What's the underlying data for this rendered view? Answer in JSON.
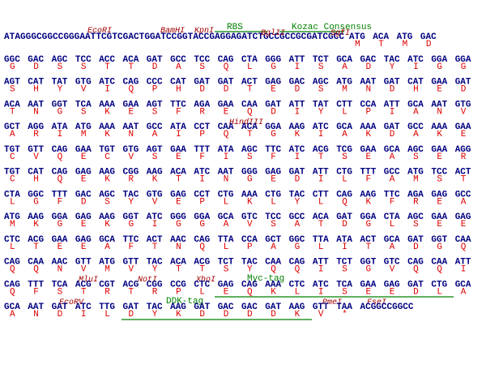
{
  "leader": "ATAGGGCGGCCGGGAATTCGTCGACTGGATCCGGTACCGAGGAGATCTGCCGCCGCGATCGCC",
  "annotations": [
    "EcoRI",
    "BamHI",
    "KpnI",
    "RBS",
    "BglII",
    "Kozac Consensus",
    "SgfI",
    "HindIII",
    "MluI",
    "NotI",
    "XhoI",
    "Myc-tag",
    "EcoRV",
    "DDK-tag",
    "PmeI",
    "FseI"
  ],
  "trailer": "ACGGCCGGCC",
  "rows": [
    {
      "codons": [
        "ATG",
        "ACA",
        "ATG",
        "GAC"
      ],
      "aa": [
        "M",
        "T",
        "M",
        "D"
      ]
    },
    {
      "codons": [
        "GGC",
        "GAC",
        "AGC",
        "TCC",
        "ACC",
        "ACA",
        "GAT",
        "GCC",
        "TCC",
        "CAG",
        "CTA",
        "GGG",
        "ATT",
        "TCT",
        "GCA",
        "GAC",
        "TAC",
        "ATC",
        "GGA",
        "GGA"
      ],
      "aa": [
        "G",
        "D",
        "S",
        "S",
        "T",
        "T",
        "D",
        "A",
        "S",
        "Q",
        "L",
        "G",
        "I",
        "S",
        "A",
        "D",
        "Y",
        "I",
        "G",
        "G"
      ]
    },
    {
      "codons": [
        "AGT",
        "CAT",
        "TAT",
        "GTG",
        "ATC",
        "CAG",
        "CCC",
        "CAT",
        "GAT",
        "GAT",
        "ACT",
        "GAG",
        "GAC",
        "AGC",
        "ATG",
        "AAT",
        "GAT",
        "CAT",
        "GAA",
        "GAT"
      ],
      "aa": [
        "S",
        "H",
        "Y",
        "V",
        "I",
        "Q",
        "P",
        "H",
        "D",
        "D",
        "T",
        "E",
        "D",
        "S",
        "M",
        "N",
        "D",
        "H",
        "E",
        "D"
      ]
    },
    {
      "codons": [
        "ACA",
        "AAT",
        "GGT",
        "TCA",
        "AAA",
        "GAA",
        "AGT",
        "TTC",
        "AGA",
        "GAA",
        "CAA",
        "GAT",
        "ATT",
        "TAT",
        "CTT",
        "CCA",
        "ATT",
        "GCA",
        "AAT",
        "GTG"
      ],
      "aa": [
        "T",
        "N",
        "G",
        "S",
        "K",
        "E",
        "S",
        "F",
        "R",
        "E",
        "Q",
        "D",
        "I",
        "Y",
        "L",
        "P",
        "I",
        "A",
        "N",
        "V"
      ]
    },
    {
      "codons": [
        "GCT",
        "AGG",
        "ATA",
        "ATG",
        "AAA",
        "AAT",
        "GCC",
        "ATA",
        "CCT",
        "CAA",
        "ACA",
        "GGA",
        "AAG",
        "ATC",
        "GCA",
        "AAA",
        "GAT",
        "GCC",
        "AAA",
        "GAA"
      ],
      "aa": [
        "A",
        "R",
        "I",
        "M",
        "K",
        "N",
        "A",
        "I",
        "P",
        "Q",
        "T",
        "G",
        "K",
        "I",
        "A",
        "K",
        "D",
        "A",
        "K",
        "E"
      ]
    },
    {
      "codons": [
        "TGT",
        "GTT",
        "CAG",
        "GAA",
        "TGT",
        "GTG",
        "AGT",
        "GAA",
        "TTT",
        "ATA",
        "AGC",
        "TTC",
        "ATC",
        "ACG",
        "TCG",
        "GAA",
        "GCA",
        "AGC",
        "GAA",
        "AGG"
      ],
      "aa": [
        "C",
        "V",
        "Q",
        "E",
        "C",
        "V",
        "S",
        "E",
        "F",
        "I",
        "S",
        "F",
        "I",
        "T",
        "S",
        "E",
        "A",
        "S",
        "E",
        "R"
      ]
    },
    {
      "codons": [
        "TGT",
        "CAT",
        "CAG",
        "GAG",
        "AAG",
        "CGG",
        "AAG",
        "ACA",
        "ATC",
        "AAT",
        "GGG",
        "GAG",
        "GAT",
        "ATT",
        "CTG",
        "TTT",
        "GCC",
        "ATG",
        "TCC",
        "ACT"
      ],
      "aa": [
        "C",
        "H",
        "Q",
        "E",
        "K",
        "R",
        "K",
        "T",
        "I",
        "N",
        "G",
        "E",
        "D",
        "I",
        "L",
        "F",
        "A",
        "M",
        "S",
        "T"
      ]
    },
    {
      "codons": [
        "CTA",
        "GGC",
        "TTT",
        "GAC",
        "AGC",
        "TAC",
        "GTG",
        "GAG",
        "CCT",
        "CTG",
        "AAA",
        "CTG",
        "TAC",
        "CTT",
        "CAG",
        "AAG",
        "TTC",
        "AGA",
        "GAG",
        "GCC"
      ],
      "aa": [
        "L",
        "G",
        "F",
        "D",
        "S",
        "Y",
        "V",
        "E",
        "P",
        "L",
        "K",
        "L",
        "Y",
        "L",
        "Q",
        "K",
        "F",
        "R",
        "E",
        "A"
      ]
    },
    {
      "codons": [
        "ATG",
        "AAG",
        "GGA",
        "GAG",
        "AAG",
        "GGT",
        "ATC",
        "GGG",
        "GGA",
        "GCA",
        "GTC",
        "TCC",
        "GCC",
        "ACA",
        "GAT",
        "GGA",
        "CTA",
        "AGC",
        "GAA",
        "GAG"
      ],
      "aa": [
        "M",
        "K",
        "G",
        "E",
        "K",
        "G",
        "I",
        "G",
        "G",
        "A",
        "V",
        "S",
        "A",
        "T",
        "D",
        "G",
        "L",
        "S",
        "E",
        "E"
      ]
    },
    {
      "codons": [
        "CTC",
        "ACG",
        "GAA",
        "GAG",
        "GCA",
        "TTC",
        "ACT",
        "AAC",
        "CAG",
        "TTA",
        "CCA",
        "GCT",
        "GGC",
        "TTA",
        "ATA",
        "ACT",
        "GCA",
        "GAT",
        "GGT",
        "CAA"
      ],
      "aa": [
        "L",
        "T",
        "E",
        "E",
        "A",
        "F",
        "T",
        "N",
        "Q",
        "L",
        "P",
        "A",
        "G",
        "L",
        "I",
        "T",
        "A",
        "D",
        "G",
        "Q"
      ]
    },
    {
      "codons": [
        "CAG",
        "CAA",
        "AAC",
        "GTT",
        "ATG",
        "GTT",
        "TAC",
        "ACA",
        "ACG",
        "TCT",
        "TAC",
        "CAA",
        "CAG",
        "ATT",
        "TCT",
        "GGT",
        "GTC",
        "CAG",
        "CAA",
        "ATT"
      ],
      "aa": [
        "Q",
        "Q",
        "N",
        "V",
        "M",
        "V",
        "Y",
        "T",
        "T",
        "S",
        "Y",
        "Q",
        "Q",
        "I",
        "S",
        "G",
        "V",
        "Q",
        "Q",
        "I"
      ]
    },
    {
      "codons": [
        "CAG",
        "TTT",
        "TCA",
        "ACG",
        "CGT",
        "ACG",
        "CGG",
        "CCG",
        "CTC",
        "GAG",
        "CAG",
        "AAA",
        "CTC",
        "ATC",
        "TCA",
        "GAA",
        "GAG",
        "GAT",
        "CTG",
        "GCA"
      ],
      "aa": [
        "Q",
        "F",
        "S",
        "T",
        "R",
        "T",
        "R",
        "P",
        "L",
        "E",
        "Q",
        "K",
        "L",
        "I",
        "S",
        "E",
        "E",
        "D",
        "L",
        "A"
      ]
    },
    {
      "codons": [
        "GCA",
        "AAT",
        "GAT",
        "ATC",
        "TTG",
        "GAT",
        "TAC",
        "AAG",
        "GAT",
        "GAC",
        "GAC",
        "GAT",
        "AAG",
        "GTT",
        "TAA"
      ],
      "aa": [
        "A",
        "N",
        "D",
        "I",
        "L",
        "D",
        "Y",
        "K",
        "D",
        "D",
        "D",
        "D",
        "K",
        "V",
        "*"
      ]
    }
  ]
}
